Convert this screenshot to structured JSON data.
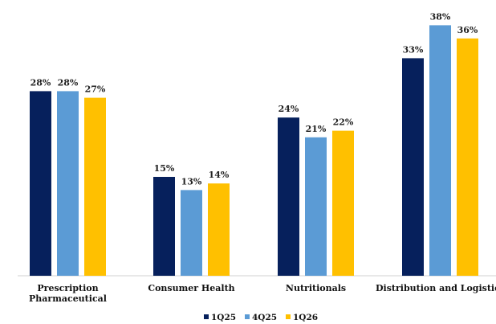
{
  "chart_data": {
    "type": "bar",
    "categories": [
      [
        "Prescription",
        "Pharmaceutical"
      ],
      [
        "Consumer Health"
      ],
      [
        "Nutritionals"
      ],
      [
        "Distribution and Logistics"
      ]
    ],
    "series": [
      {
        "name": "1Q25",
        "color": "#06205c",
        "values": [
          28,
          15,
          24,
          33
        ]
      },
      {
        "name": "4Q25",
        "color": "#5b9bd5",
        "values": [
          28,
          13,
          21,
          38
        ]
      },
      {
        "name": "1Q26",
        "color": "#ffc000",
        "values": [
          27,
          14,
          22,
          36
        ]
      }
    ],
    "value_labels": [
      [
        "28%",
        "15%",
        "24%",
        "33%"
      ],
      [
        "28%",
        "13%",
        "21%",
        "38%"
      ],
      [
        "27%",
        "14%",
        "22%",
        "36%"
      ]
    ],
    "ylim": [
      0,
      40
    ],
    "y_axis_visible": false,
    "grid": false,
    "legend_position": "bottom-center",
    "title": "",
    "xlabel": "",
    "ylabel": ""
  }
}
